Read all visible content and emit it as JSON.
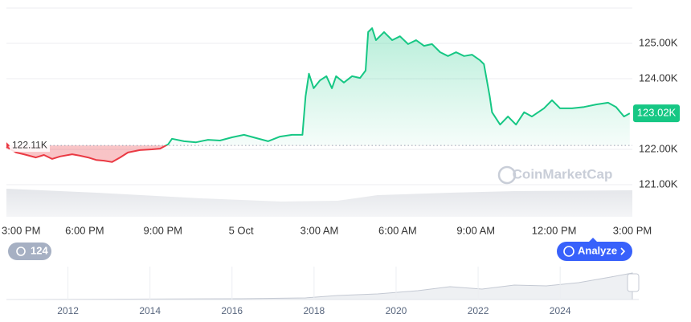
{
  "chart_data": {
    "type": "line",
    "x": [
      0,
      0.37,
      0.67,
      1.13,
      1.44,
      1.75,
      2.06,
      2.52,
      2.82,
      3.13,
      3.44,
      3.74,
      4.05,
      4.36,
      4.66,
      5.12,
      5.58,
      5.89,
      6.2,
      6.35,
      6.81,
      7.27,
      7.73,
      8.19,
      8.65,
      9.11,
      9.57,
      10.03,
      10.49,
      10.95,
      11.35,
      11.47,
      11.6,
      11.78,
      12.02,
      12.27,
      12.48,
      12.64,
      12.94,
      13.25,
      13.56,
      13.77,
      13.87,
      14.02,
      14.17,
      14.48,
      14.79,
      15.09,
      15.4,
      15.71,
      16.01,
      16.32,
      16.63,
      16.93,
      17.24,
      17.55,
      17.85,
      18.16,
      18.31,
      18.53,
      18.62,
      18.93,
      19.23,
      19.54,
      19.85,
      20.15,
      20.61,
      20.92,
      21.23,
      21.69,
      22.15,
      22.61,
      23.07,
      23.37,
      23.68,
      23.9
    ],
    "values": [
      122.07,
      121.91,
      121.86,
      121.77,
      121.84,
      121.73,
      121.8,
      121.86,
      121.82,
      121.77,
      121.7,
      121.68,
      121.64,
      121.77,
      121.91,
      121.98,
      122.0,
      122.02,
      122.14,
      122.3,
      122.23,
      122.2,
      122.27,
      122.25,
      122.34,
      122.41,
      122.32,
      122.23,
      122.36,
      122.41,
      122.41,
      123.5,
      124.14,
      123.73,
      123.95,
      124.07,
      123.73,
      124.07,
      123.89,
      124.07,
      124.02,
      124.23,
      125.32,
      125.43,
      125.09,
      125.32,
      125.09,
      125.2,
      124.98,
      125.09,
      124.93,
      124.98,
      124.75,
      124.64,
      124.75,
      124.64,
      124.68,
      124.52,
      124.41,
      123.5,
      123.05,
      122.7,
      122.93,
      122.7,
      123.05,
      122.93,
      123.16,
      123.39,
      123.16,
      123.16,
      123.2,
      123.27,
      123.32,
      123.2,
      122.93,
      123.02
    ],
    "color_up": "#16c784",
    "color_down": "#ea3943",
    "xlim": [
      0,
      24
    ],
    "xticks": [
      {
        "value": 0,
        "label": "3:00 PM"
      },
      {
        "value": 3,
        "label": "6:00 PM"
      },
      {
        "value": 6,
        "label": "9:00 PM"
      },
      {
        "value": 9,
        "label": "5 Oct"
      },
      {
        "value": 12,
        "label": "3:00 AM"
      },
      {
        "value": 15,
        "label": "6:00 AM"
      },
      {
        "value": 18,
        "label": "9:00 AM"
      },
      {
        "value": 21,
        "label": "12:00 PM"
      },
      {
        "value": 24,
        "label": "3:00 PM"
      }
    ],
    "ylim": [
      120.09,
      126.0
    ],
    "yticks": [
      {
        "value": 121,
        "label": "121.00K"
      },
      {
        "value": 122,
        "label": "122.00K"
      },
      {
        "value": 124,
        "label": "124.00K"
      },
      {
        "value": 125,
        "label": "125.00K"
      }
    ],
    "grid": true,
    "baseline": {
      "value": 122.11,
      "label": "122.11K"
    },
    "last": {
      "value": 123.02,
      "label": "123.02K"
    }
  },
  "watermark": "CoinMarketCap",
  "badge": "124",
  "button": "Analyze",
  "navigator": {
    "xlim": [
      2010.5,
      2025.76
    ],
    "xticks": [
      2012,
      2014,
      2016,
      2018,
      2020,
      2022,
      2024
    ]
  }
}
